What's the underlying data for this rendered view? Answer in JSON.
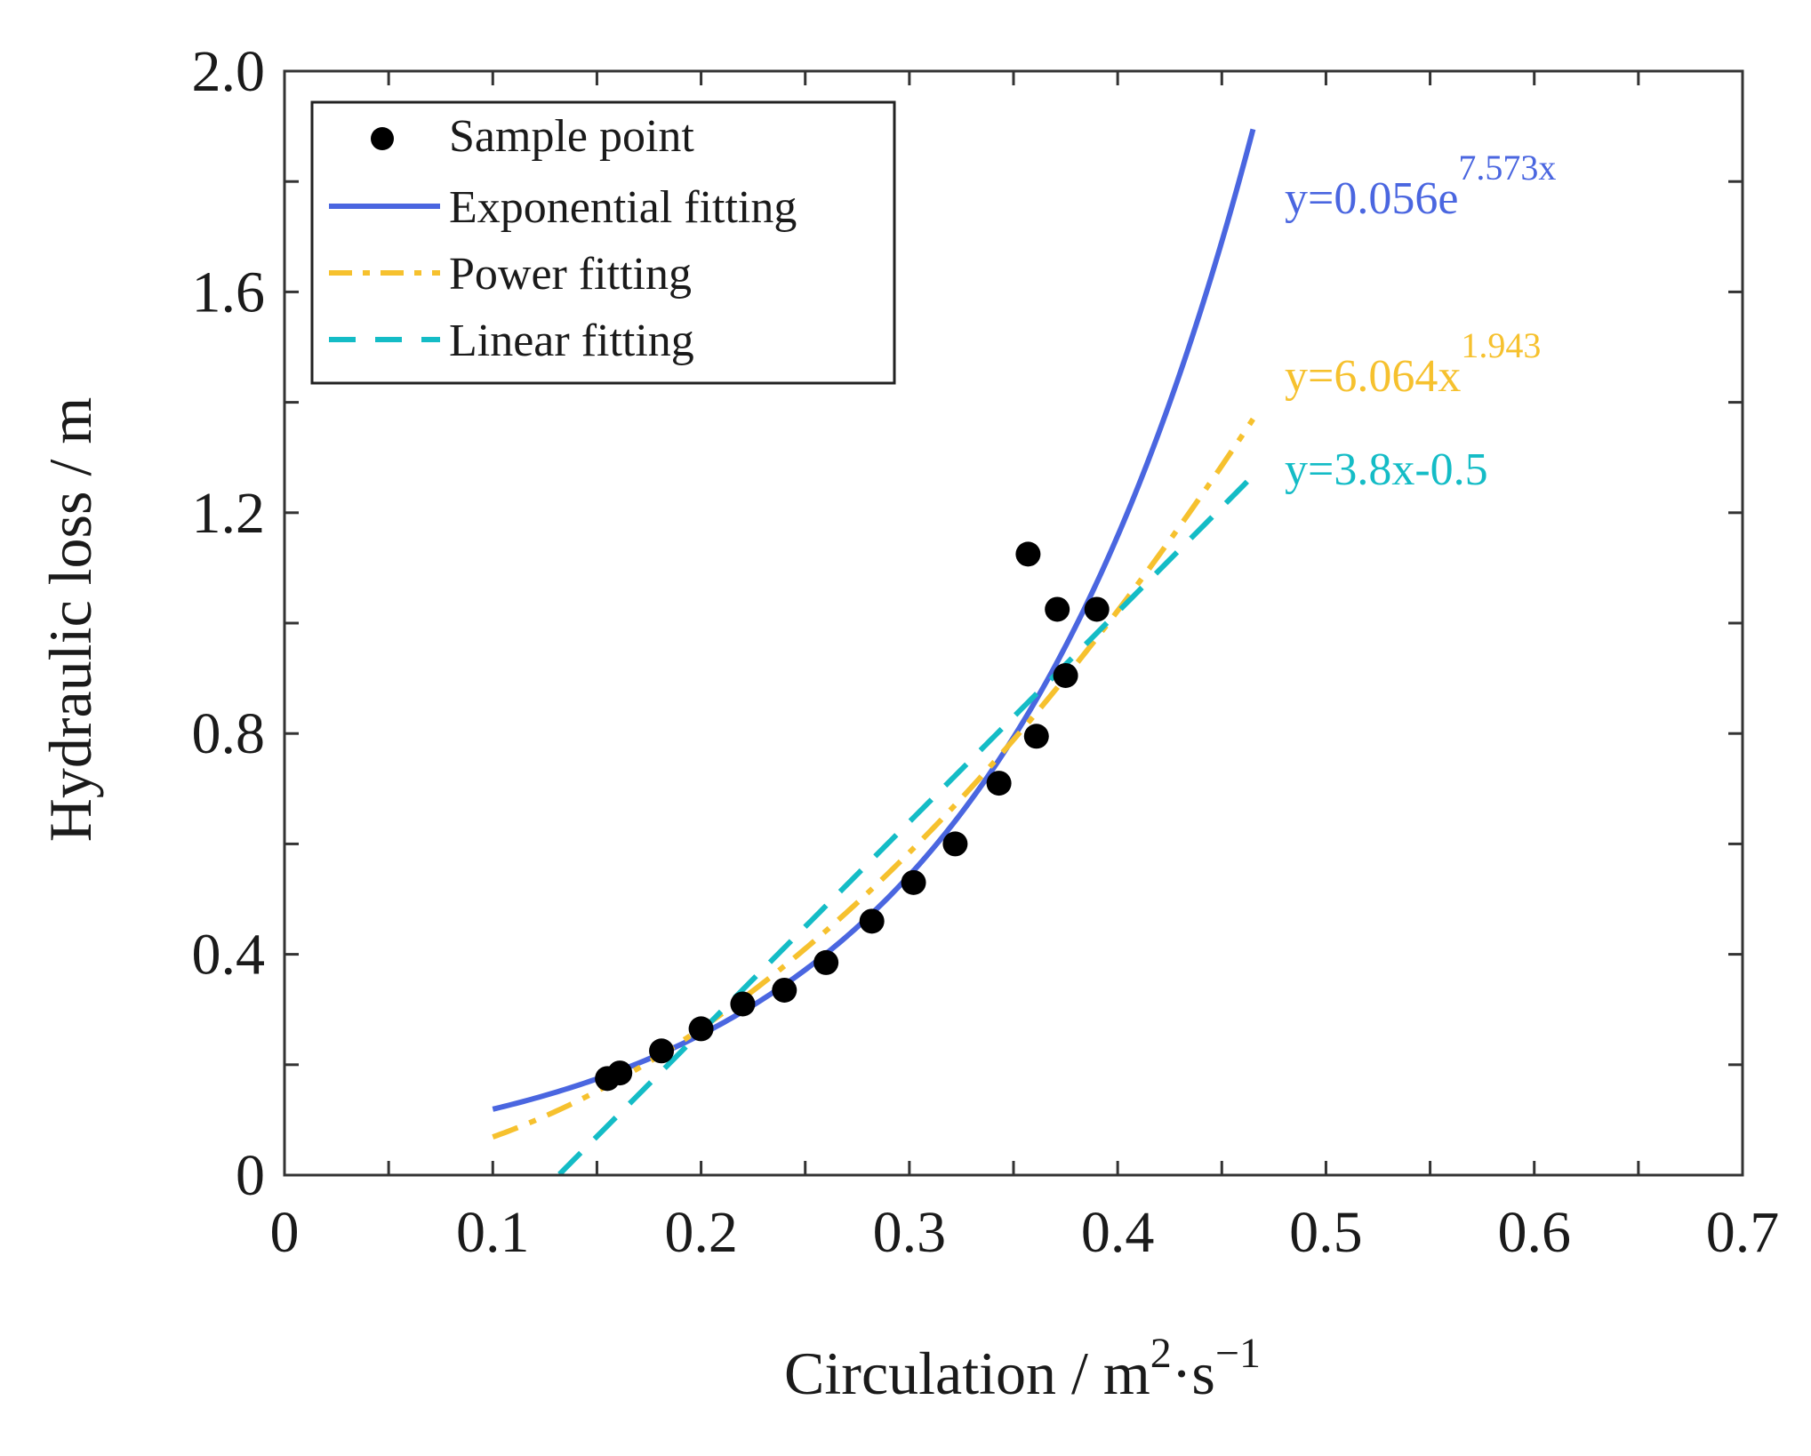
{
  "chart_data": {
    "type": "scatter",
    "xlabel": "Circulation / m",
    "xlabel_sup1": "2",
    "xlabel_mid": "·s",
    "xlabel_sup2": "−1",
    "ylabel": "Hydraulic loss / m",
    "xlim": [
      0,
      0.7
    ],
    "ylim": [
      0,
      2.0
    ],
    "x_ticks": [
      0,
      0.1,
      0.2,
      0.3,
      0.4,
      0.5,
      0.6,
      0.7
    ],
    "x_tick_labels": [
      "0",
      "0.1",
      "0.2",
      "0.3",
      "0.4",
      "0.5",
      "0.6",
      "0.7"
    ],
    "y_ticks": [
      0,
      0.4,
      0.8,
      1.2,
      1.6,
      2.0
    ],
    "y_tick_labels": [
      "0",
      "0.4",
      "0.8",
      "1.2",
      "1.6",
      "2.0"
    ],
    "minor_x_step": 0.05,
    "minor_y_step": 0.2,
    "grid": false,
    "legend_position": "top-left",
    "series": [
      {
        "name": "Sample point",
        "kind": "scatter",
        "color": "#000000",
        "points": [
          [
            0.155,
            0.175
          ],
          [
            0.161,
            0.185
          ],
          [
            0.181,
            0.225
          ],
          [
            0.2,
            0.265
          ],
          [
            0.22,
            0.31
          ],
          [
            0.24,
            0.335
          ],
          [
            0.26,
            0.385
          ],
          [
            0.282,
            0.46
          ],
          [
            0.302,
            0.53
          ],
          [
            0.322,
            0.6
          ],
          [
            0.343,
            0.71
          ],
          [
            0.357,
            1.125
          ],
          [
            0.361,
            0.795
          ],
          [
            0.371,
            1.025
          ],
          [
            0.375,
            0.905
          ],
          [
            0.39,
            1.025
          ]
        ]
      },
      {
        "name": "Exponential fitting",
        "kind": "line",
        "style": "solid",
        "color": "#4a66e0",
        "model": "exponential",
        "a": 0.056,
        "b": 7.573,
        "x_range": [
          0.1,
          0.465
        ],
        "equation": "y=0.056e",
        "equation_sup": "7.573x"
      },
      {
        "name": "Power fitting",
        "kind": "line",
        "style": "dashdot",
        "color": "#f6c12e",
        "model": "power",
        "a": 6.064,
        "b": 1.943,
        "x_range": [
          0.1,
          0.465
        ],
        "equation": "y=6.064x",
        "equation_sup": "1.943"
      },
      {
        "name": "Linear fitting",
        "kind": "line",
        "style": "dashed",
        "color": "#14bcc6",
        "model": "linear",
        "a": 3.8,
        "b": -0.5,
        "x_range": [
          0.132,
          0.465
        ],
        "equation": "y=3.8x-0.5",
        "equation_sup": ""
      }
    ]
  }
}
